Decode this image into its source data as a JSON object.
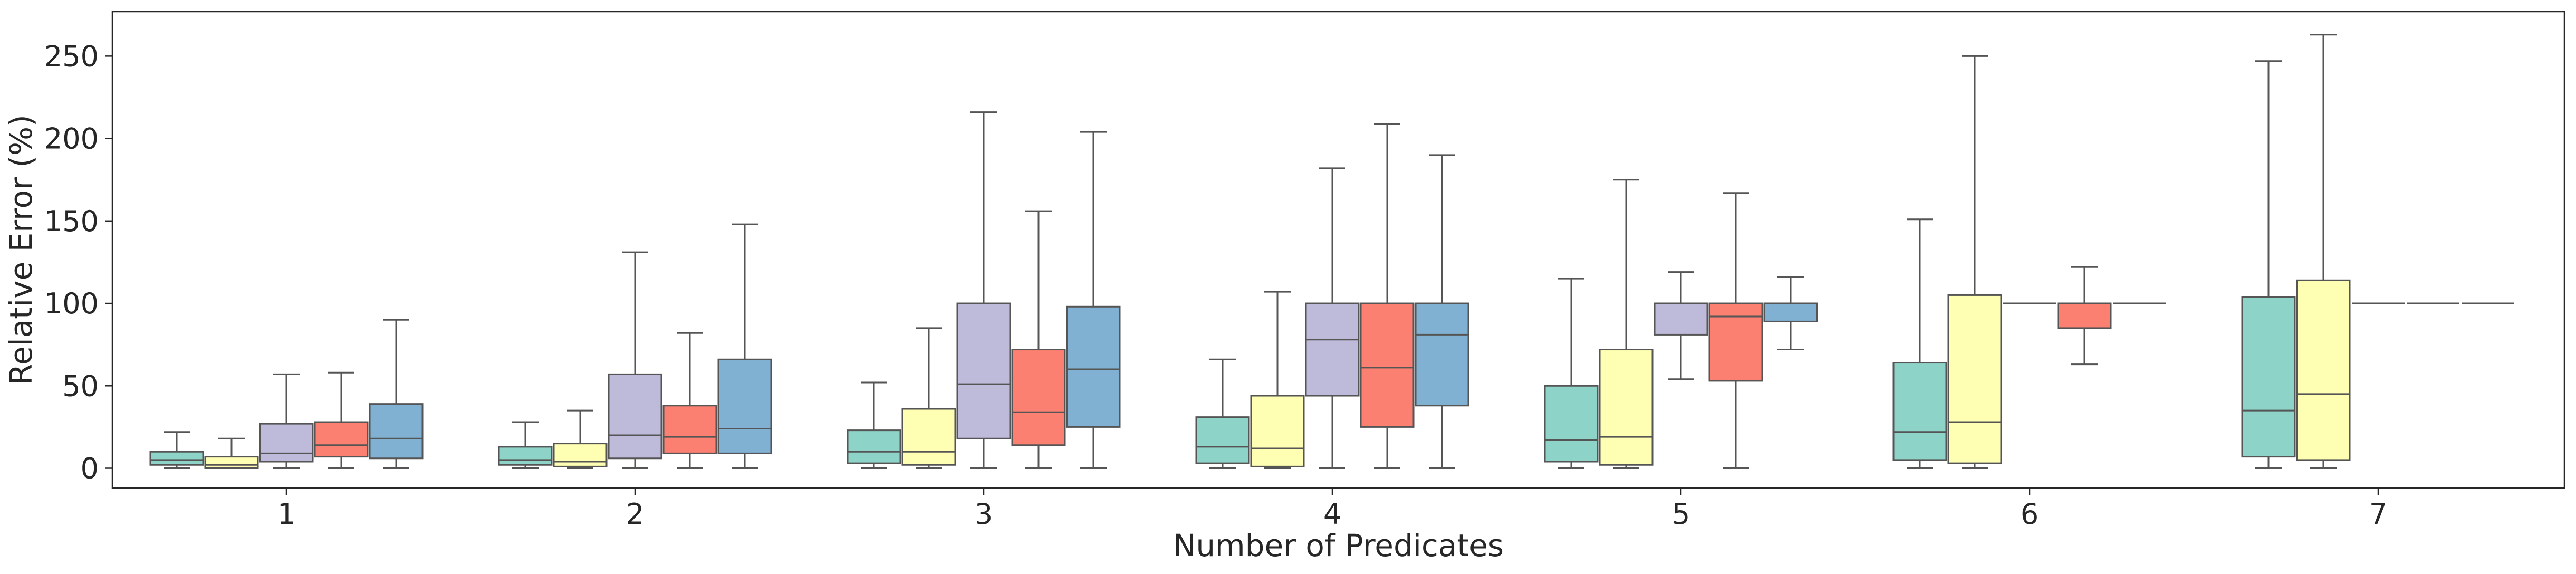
{
  "chart_data": {
    "type": "boxplot",
    "xlabel": "Number of Predicates",
    "ylabel": "Relative Error (%)",
    "categories": [
      "1",
      "2",
      "3",
      "4",
      "5",
      "6",
      "7"
    ],
    "ylim": [
      -12,
      277
    ],
    "yticks": [
      0,
      50,
      100,
      150,
      200,
      250
    ],
    "grid": false,
    "legend": "none",
    "series_colors": [
      "#8dd3c7",
      "#ffffb3",
      "#bebada",
      "#fb8072",
      "#80b1d3"
    ],
    "groups": [
      {
        "category": "1",
        "boxes": [
          {
            "whislo": 0,
            "q1": 2,
            "med": 5,
            "q3": 10,
            "whishi": 22
          },
          {
            "whislo": 0,
            "q1": 0,
            "med": 2,
            "q3": 7,
            "whishi": 18
          },
          {
            "whislo": 0,
            "q1": 4,
            "med": 9,
            "q3": 27,
            "whishi": 57
          },
          {
            "whislo": 0,
            "q1": 7,
            "med": 14,
            "q3": 28,
            "whishi": 58
          },
          {
            "whislo": 0,
            "q1": 6,
            "med": 18,
            "q3": 39,
            "whishi": 90
          }
        ]
      },
      {
        "category": "2",
        "boxes": [
          {
            "whislo": 0,
            "q1": 2,
            "med": 5,
            "q3": 13,
            "whishi": 28
          },
          {
            "whislo": 0,
            "q1": 1,
            "med": 4,
            "q3": 15,
            "whishi": 35
          },
          {
            "whislo": 0,
            "q1": 6,
            "med": 20,
            "q3": 57,
            "whishi": 131
          },
          {
            "whislo": 0,
            "q1": 9,
            "med": 19,
            "q3": 38,
            "whishi": 82
          },
          {
            "whislo": 0,
            "q1": 9,
            "med": 24,
            "q3": 66,
            "whishi": 148
          }
        ]
      },
      {
        "category": "3",
        "boxes": [
          {
            "whislo": 0,
            "q1": 3,
            "med": 10,
            "q3": 23,
            "whishi": 52
          },
          {
            "whislo": 0,
            "q1": 2,
            "med": 10,
            "q3": 36,
            "whishi": 85
          },
          {
            "whislo": 0,
            "q1": 18,
            "med": 51,
            "q3": 100,
            "whishi": 216
          },
          {
            "whislo": 0,
            "q1": 14,
            "med": 34,
            "q3": 72,
            "whishi": 156
          },
          {
            "whislo": 0,
            "q1": 25,
            "med": 60,
            "q3": 98,
            "whishi": 204
          }
        ]
      },
      {
        "category": "4",
        "boxes": [
          {
            "whislo": 0,
            "q1": 3,
            "med": 13,
            "q3": 31,
            "whishi": 66
          },
          {
            "whislo": 0,
            "q1": 1,
            "med": 12,
            "q3": 44,
            "whishi": 107
          },
          {
            "whislo": 0,
            "q1": 44,
            "med": 78,
            "q3": 100,
            "whishi": 182
          },
          {
            "whislo": 0,
            "q1": 25,
            "med": 61,
            "q3": 100,
            "whishi": 209
          },
          {
            "whislo": 0,
            "q1": 38,
            "med": 81,
            "q3": 100,
            "whishi": 190
          }
        ]
      },
      {
        "category": "5",
        "boxes": [
          {
            "whislo": 0,
            "q1": 4,
            "med": 17,
            "q3": 50,
            "whishi": 115
          },
          {
            "whislo": 0,
            "q1": 2,
            "med": 19,
            "q3": 72,
            "whishi": 175
          },
          {
            "whislo": 54,
            "q1": 81,
            "med": 100,
            "q3": 100,
            "whishi": 119
          },
          {
            "whislo": 0,
            "q1": 53,
            "med": 92,
            "q3": 100,
            "whishi": 167
          },
          {
            "whislo": 72,
            "q1": 89,
            "med": 100,
            "q3": 100,
            "whishi": 116
          }
        ]
      },
      {
        "category": "6",
        "boxes": [
          {
            "whislo": 0,
            "q1": 5,
            "med": 22,
            "q3": 64,
            "whishi": 151
          },
          {
            "whislo": 0,
            "q1": 3,
            "med": 28,
            "q3": 105,
            "whishi": 250
          },
          {
            "whislo": 100,
            "q1": 100,
            "med": 100,
            "q3": 100,
            "whishi": 100
          },
          {
            "whislo": 63,
            "q1": 85,
            "med": 100,
            "q3": 100,
            "whishi": 122
          },
          {
            "whislo": 100,
            "q1": 100,
            "med": 100,
            "q3": 100,
            "whishi": 100
          }
        ]
      },
      {
        "category": "7",
        "boxes": [
          {
            "whislo": 0,
            "q1": 7,
            "med": 35,
            "q3": 104,
            "whishi": 247
          },
          {
            "whislo": 0,
            "q1": 5,
            "med": 45,
            "q3": 114,
            "whishi": 263
          },
          {
            "whislo": 100,
            "q1": 100,
            "med": 100,
            "q3": 100,
            "whishi": 100
          },
          {
            "whislo": 100,
            "q1": 100,
            "med": 100,
            "q3": 100,
            "whishi": 100
          },
          {
            "whislo": 100,
            "q1": 100,
            "med": 100,
            "q3": 100,
            "whishi": 100
          }
        ]
      }
    ]
  }
}
